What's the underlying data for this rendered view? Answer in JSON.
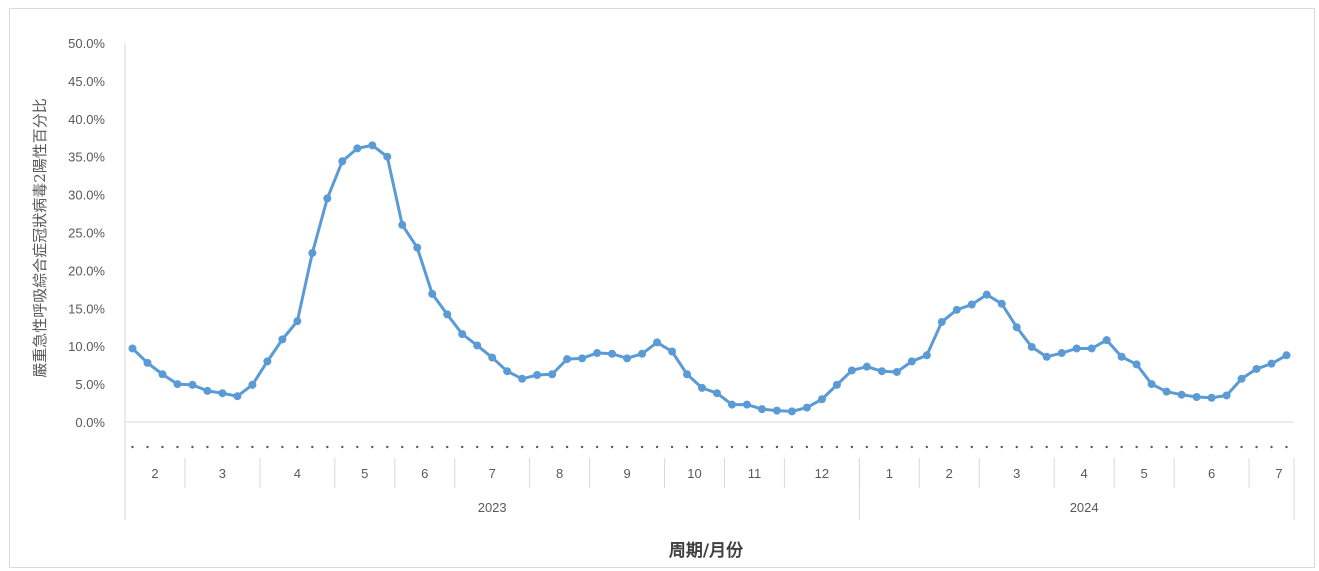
{
  "chart_data": {
    "type": "line",
    "ylabel": "嚴重急性呼吸綜合症冠狀病毒2陽性百分比",
    "xlabel": "周期/月份",
    "ylim": [
      0,
      50
    ],
    "yticks": [
      "0.0%",
      "5.0%",
      "10.0%",
      "15.0%",
      "20.0%",
      "25.0%",
      "30.0%",
      "35.0%",
      "40.0%",
      "45.0%",
      "50.0%"
    ],
    "months": [
      {
        "label": "2",
        "weeks": 4
      },
      {
        "label": "3",
        "weeks": 5
      },
      {
        "label": "4",
        "weeks": 5
      },
      {
        "label": "5",
        "weeks": 4
      },
      {
        "label": "6",
        "weeks": 4
      },
      {
        "label": "7",
        "weeks": 5
      },
      {
        "label": "8",
        "weeks": 4
      },
      {
        "label": "9",
        "weeks": 5
      },
      {
        "label": "10",
        "weeks": 4
      },
      {
        "label": "11",
        "weeks": 4
      },
      {
        "label": "12",
        "weeks": 5
      },
      {
        "label": "1",
        "weeks": 4
      },
      {
        "label": "2",
        "weeks": 4
      },
      {
        "label": "3",
        "weeks": 5
      },
      {
        "label": "4",
        "weeks": 4
      },
      {
        "label": "5",
        "weeks": 4
      },
      {
        "label": "6",
        "weeks": 5
      },
      {
        "label": "7",
        "weeks": 4
      }
    ],
    "years": [
      {
        "label": "2023",
        "months": 11
      },
      {
        "label": "2024",
        "months": 7
      }
    ],
    "series": [
      {
        "values": [
          9.7,
          7.8,
          6.3,
          5.0,
          4.9,
          4.1,
          3.8,
          3.4,
          4.9,
          8.0,
          10.9,
          13.3,
          22.3,
          29.5,
          34.4,
          36.1,
          36.5,
          35.0,
          26.0,
          23.0,
          16.9,
          14.2,
          11.6,
          10.1,
          8.5,
          6.7,
          5.7,
          6.2,
          6.3,
          8.3,
          8.4,
          9.1,
          9.0,
          8.4,
          9.0,
          10.5,
          9.3,
          6.3,
          4.5,
          3.8,
          2.3,
          2.3,
          1.7,
          1.5,
          1.4,
          1.9,
          3.0,
          4.9,
          6.8,
          7.3,
          6.7,
          6.6,
          8.0,
          8.8,
          13.2,
          14.8,
          15.5,
          16.8,
          15.6,
          12.5,
          9.9,
          8.6,
          9.1,
          9.7,
          9.7,
          10.8,
          8.6,
          7.6,
          5.0,
          4.0,
          3.6,
          3.3,
          3.2,
          3.5,
          5.7,
          7.0,
          7.7,
          8.8
        ],
        "color": "#5b9bd5"
      }
    ]
  }
}
